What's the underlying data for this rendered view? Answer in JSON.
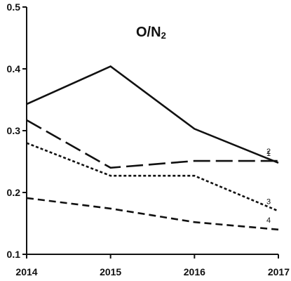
{
  "chart_data": {
    "type": "line",
    "title_main": "O/N",
    "title_sub": "2",
    "x": [
      2014,
      2015,
      2016,
      2017
    ],
    "x_tick_labels": [
      "2014",
      "2015",
      "2016",
      "2017"
    ],
    "ylim": [
      0.1,
      0.5
    ],
    "y_ticks": [
      0.1,
      0.2,
      0.3,
      0.4,
      0.5
    ],
    "y_tick_labels": [
      "0.1",
      "0.2",
      "0.3",
      "0.4",
      "0.5"
    ],
    "grid": false,
    "series": [
      {
        "name": "1",
        "values": [
          0.343,
          0.404,
          0.303,
          0.248
        ],
        "style": "solid"
      },
      {
        "name": "2",
        "values": [
          0.317,
          0.24,
          0.251,
          0.251
        ],
        "style": "long-dash"
      },
      {
        "name": "3",
        "values": [
          0.28,
          0.227,
          0.227,
          0.17
        ],
        "style": "short-dash"
      },
      {
        "name": "4",
        "values": [
          0.191,
          0.174,
          0.152,
          0.14
        ],
        "style": "medium-dash"
      }
    ],
    "line_color": "#111111"
  }
}
